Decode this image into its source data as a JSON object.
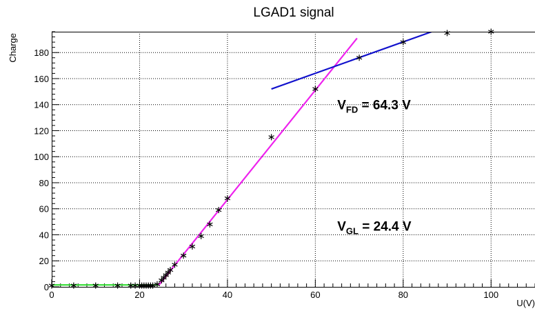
{
  "chart_data": {
    "type": "scatter",
    "title": "LGAD1 signal",
    "xlabel": "U(V)",
    "ylabel": "Charge",
    "xlim": [
      0,
      110
    ],
    "ylim": [
      0,
      196
    ],
    "grid": true,
    "x_ticks": [
      0,
      20,
      40,
      60,
      80,
      100
    ],
    "y_ticks": [
      0,
      20,
      40,
      60,
      80,
      100,
      120,
      140,
      160,
      180
    ],
    "colors": {
      "markers": "#000000",
      "fit_green": "#33dd33",
      "fit_red": "#dd2222",
      "fit_magenta": "#ee22ee",
      "fit_blue": "#1111cc",
      "grid": "#000000"
    },
    "series": [
      {
        "marker": "asterisk",
        "x": [
          0,
          5,
          10,
          15,
          18,
          19,
          20,
          20.5,
          21,
          21.5,
          22,
          22.5,
          23,
          24,
          25,
          25.5,
          26,
          26.5,
          27,
          28,
          30,
          32,
          34,
          36,
          38,
          40,
          50,
          60,
          70,
          80,
          90,
          100
        ],
        "y": [
          1,
          1,
          1,
          1,
          1,
          1,
          1,
          1,
          1,
          1,
          1,
          1,
          1,
          2,
          5,
          7,
          9,
          11,
          13,
          17,
          24,
          31,
          39,
          48,
          59,
          68,
          115,
          152,
          176,
          188,
          195,
          196
        ]
      }
    ],
    "fits": [
      {
        "color": "green",
        "x": [
          0,
          24.4
        ],
        "y": [
          1.5,
          1.5
        ]
      },
      {
        "color": "red",
        "x": [
          24.4,
          27
        ],
        "y": [
          1.5,
          12
        ]
      },
      {
        "color": "magenta",
        "x": [
          24.4,
          69.5
        ],
        "y": [
          1.5,
          191
        ]
      },
      {
        "color": "blue",
        "x": [
          50,
          86.5
        ],
        "y": [
          152,
          196
        ]
      }
    ],
    "annotations": [
      {
        "main": "V",
        "sub": "FD",
        "rest": " = 64.3 V",
        "x": 65,
        "y": 140
      },
      {
        "main": "V",
        "sub": "GL",
        "rest": " = 24.4 V",
        "x": 65,
        "y": 47
      }
    ]
  }
}
